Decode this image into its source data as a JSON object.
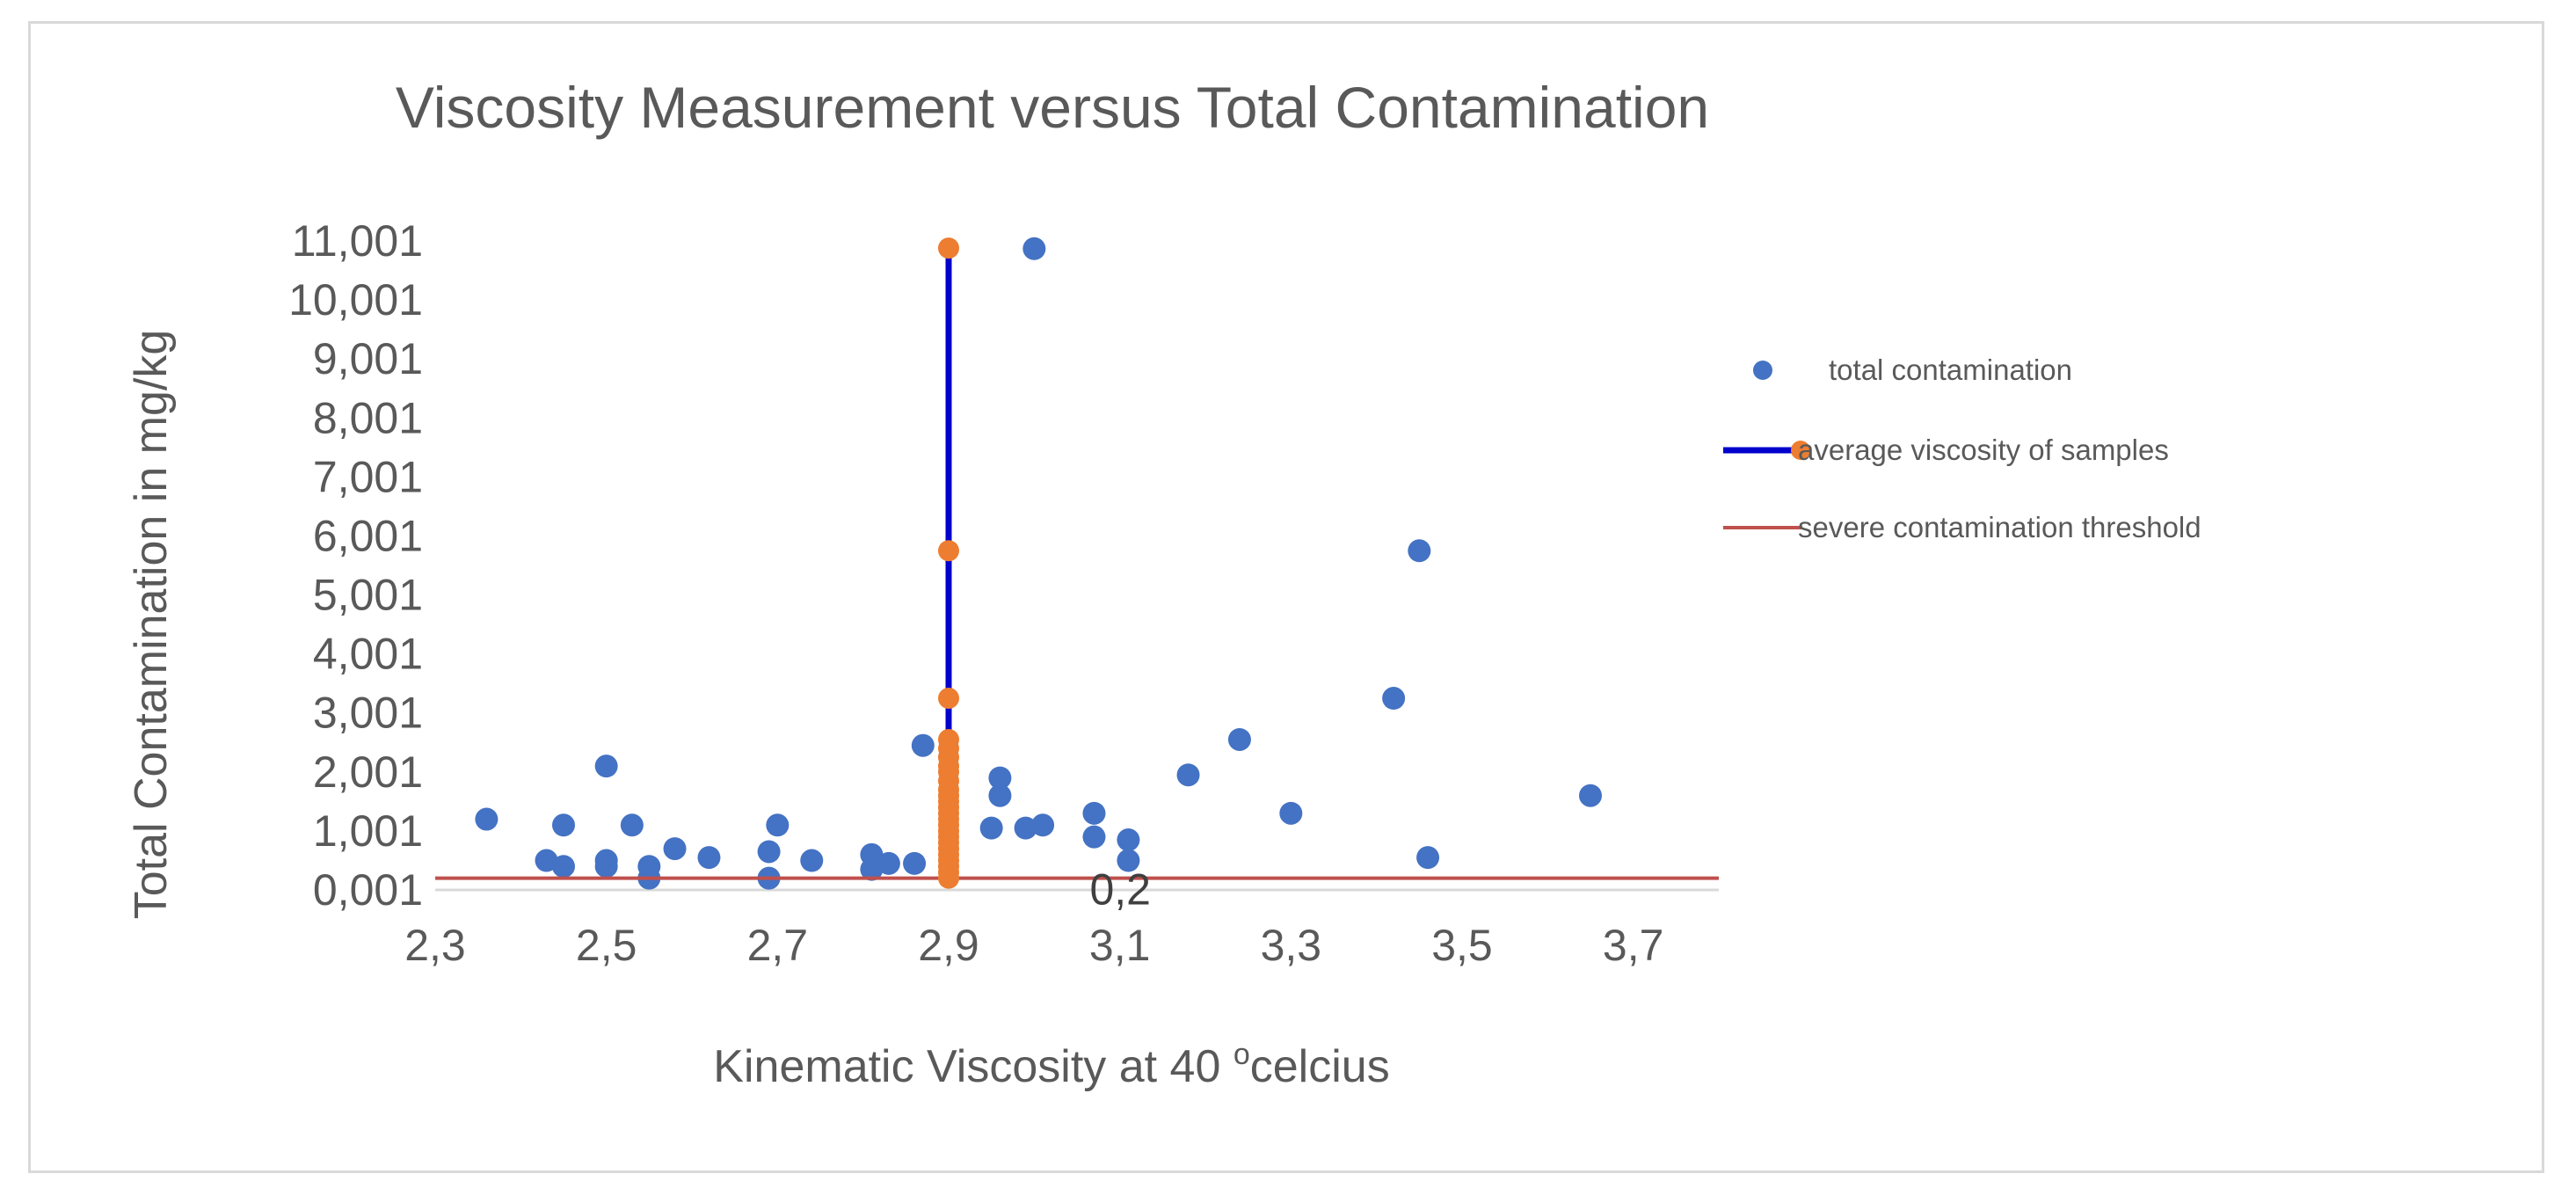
{
  "chart_data": {
    "type": "scatter",
    "title": "Viscosity Measurement versus Total Contamination",
    "xlabel": "Kinematic Viscosity at 40 °celcius",
    "xlabel_main": "Kinematic Viscosity at 40 ",
    "xlabel_degree": "o",
    "xlabel_unit": "celcius",
    "ylabel": "Total Contamination in mg/kg",
    "xlim": [
      2.3,
      3.8
    ],
    "ylim": [
      0.001,
      11.001
    ],
    "x_ticks": [
      2.3,
      2.5,
      2.7,
      2.9,
      3.1,
      3.3,
      3.5,
      3.7
    ],
    "x_tick_labels": [
      "2,3",
      "2,5",
      "2,7",
      "2,9",
      "3,1",
      "3,3",
      "3,5",
      "3,7"
    ],
    "y_ticks": [
      0.001,
      1.001,
      2.001,
      3.001,
      4.001,
      5.001,
      6.001,
      7.001,
      8.001,
      9.001,
      10.001,
      11.001
    ],
    "y_tick_labels": [
      "0,001",
      "1,001",
      "2,001",
      "3,001",
      "4,001",
      "5,001",
      "6,001",
      "7,001",
      "8,001",
      "9,001",
      "10,001",
      "11,001"
    ],
    "legend_position": "right",
    "annotations": [
      {
        "text": "0,2",
        "x": 3.07,
        "y": 0.2
      }
    ],
    "series": [
      {
        "name": "total contamination",
        "kind": "markers",
        "color": "#4472c4",
        "points": [
          [
            2.36,
            1.2
          ],
          [
            2.43,
            0.5
          ],
          [
            2.45,
            1.1
          ],
          [
            2.45,
            0.4
          ],
          [
            2.5,
            2.1
          ],
          [
            2.5,
            0.5
          ],
          [
            2.5,
            0.4
          ],
          [
            2.53,
            1.1
          ],
          [
            2.55,
            0.4
          ],
          [
            2.55,
            0.2
          ],
          [
            2.58,
            0.7
          ],
          [
            2.62,
            0.55
          ],
          [
            2.69,
            0.65
          ],
          [
            2.69,
            0.2
          ],
          [
            2.7,
            1.1
          ],
          [
            2.74,
            0.5
          ],
          [
            2.81,
            0.6
          ],
          [
            2.81,
            0.35
          ],
          [
            2.83,
            0.45
          ],
          [
            2.86,
            0.45
          ],
          [
            2.87,
            2.45
          ],
          [
            2.95,
            1.05
          ],
          [
            2.96,
            1.9
          ],
          [
            2.96,
            1.6
          ],
          [
            2.99,
            1.05
          ],
          [
            3.0,
            10.87
          ],
          [
            3.01,
            1.1
          ],
          [
            3.07,
            1.3
          ],
          [
            3.07,
            0.9
          ],
          [
            3.11,
            0.85
          ],
          [
            3.11,
            0.5
          ],
          [
            3.18,
            1.95
          ],
          [
            3.24,
            2.55
          ],
          [
            3.3,
            1.3
          ],
          [
            3.42,
            3.25
          ],
          [
            3.45,
            5.75
          ],
          [
            3.46,
            0.55
          ],
          [
            3.65,
            1.6
          ]
        ]
      },
      {
        "name": "average viscosity of samples",
        "kind": "line+markers",
        "color": "#0000cc",
        "marker_color": "#ed7d31",
        "points": [
          [
            2.9,
            0.2
          ],
          [
            2.9,
            0.3
          ],
          [
            2.9,
            0.4
          ],
          [
            2.9,
            0.5
          ],
          [
            2.9,
            0.6
          ],
          [
            2.9,
            0.7
          ],
          [
            2.9,
            0.8
          ],
          [
            2.9,
            0.9
          ],
          [
            2.9,
            1.0
          ],
          [
            2.9,
            1.1
          ],
          [
            2.9,
            1.2
          ],
          [
            2.9,
            1.3
          ],
          [
            2.9,
            1.4
          ],
          [
            2.9,
            1.5
          ],
          [
            2.9,
            1.6
          ],
          [
            2.9,
            1.7
          ],
          [
            2.9,
            1.85
          ],
          [
            2.9,
            2.0
          ],
          [
            2.9,
            2.1
          ],
          [
            2.9,
            2.25
          ],
          [
            2.9,
            2.4
          ],
          [
            2.9,
            2.55
          ],
          [
            2.9,
            3.25
          ],
          [
            2.9,
            5.75
          ],
          [
            2.9,
            10.88
          ]
        ]
      },
      {
        "name": "severe contamination threshold",
        "kind": "line",
        "color": "#c0504d",
        "points": [
          [
            2.3,
            0.2
          ],
          [
            3.8,
            0.2
          ]
        ]
      }
    ]
  }
}
